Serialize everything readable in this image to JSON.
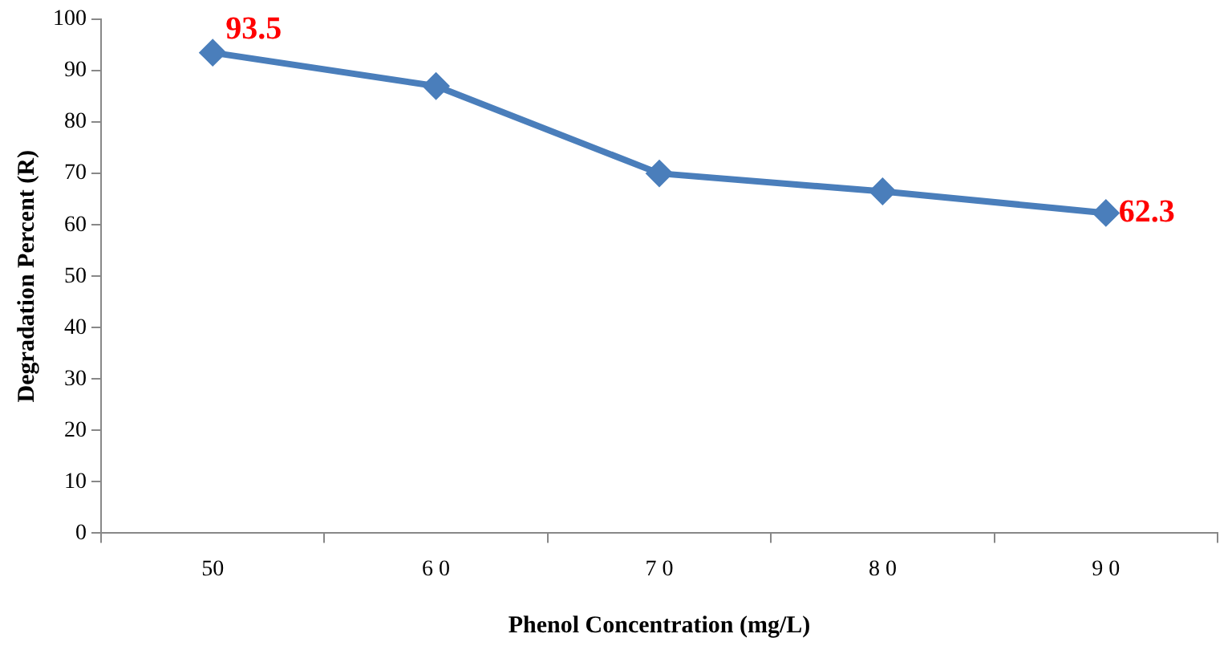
{
  "chart_data": {
    "type": "line",
    "xlabel": "Phenol Concentration (mg/L)",
    "ylabel": "Degradation Percent (R)",
    "categories": [
      "50",
      "6 0",
      "7 0",
      "8 0",
      "9 0"
    ],
    "series": [
      {
        "color": "#4a7ebb",
        "values": [
          93.5,
          87,
          70,
          66.5,
          62.3
        ],
        "value_labels": [
          "93.5",
          null,
          null,
          null,
          "62.3"
        ]
      }
    ],
    "ylim": [
      0,
      100
    ],
    "yticks": [
      0,
      10,
      20,
      30,
      40,
      50,
      60,
      70,
      80,
      90,
      100
    ],
    "grid": false,
    "legend": false,
    "marker": "diamond",
    "line_style": "solid"
  }
}
